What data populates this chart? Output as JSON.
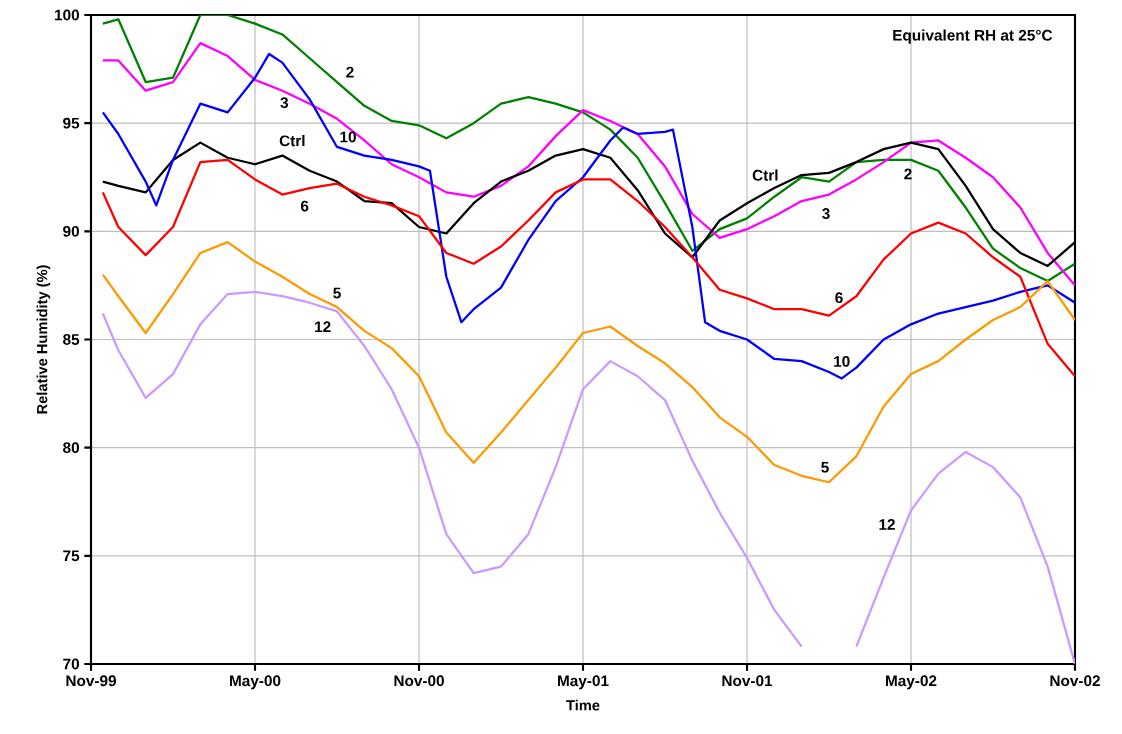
{
  "chart_data": {
    "type": "line",
    "xlabel": "Time",
    "ylabel": "Relative Humidity (%)",
    "annotations": [
      "Equivalent RH at 25°C"
    ],
    "x": [
      "1999-11-14",
      "1999-12-01",
      "2000-01-01",
      "2000-02-01",
      "2000-03-01",
      "2000-04-01",
      "2000-05-01",
      "2000-06-01",
      "2000-07-01",
      "2000-08-01",
      "2000-09-01",
      "2000-10-01",
      "2000-11-01",
      "2000-12-01",
      "2001-01-01",
      "2001-02-01",
      "2001-03-01",
      "2001-04-01",
      "2001-05-01",
      "2001-06-01",
      "2001-07-01",
      "2001-08-01",
      "2001-09-01",
      "2001-10-01",
      "2001-11-01",
      "2001-12-01",
      "2002-01-01",
      "2002-02-01",
      "2002-03-01",
      "2002-04-01",
      "2002-05-01",
      "2002-06-01",
      "2002-07-01",
      "2002-08-01",
      "2002-09-01",
      "2002-10-01",
      "2002-11-01"
    ],
    "series": [
      {
        "name": "2",
        "color": "#008000",
        "values": [
          99.6,
          99.8,
          96.9,
          97.1,
          100,
          100,
          99.6,
          99.1,
          98.0,
          96.9,
          95.8,
          95.1,
          94.9,
          94.3,
          95.0,
          95.9,
          96.2,
          95.9,
          95.5,
          94.7,
          93.4,
          91.3,
          89.1,
          90.1,
          90.6,
          91.6,
          92.5,
          92.3,
          93.2,
          93.3,
          93.3,
          92.8,
          91.1,
          89.2,
          88.3,
          87.7,
          88.5
        ]
      },
      {
        "name": "3",
        "color": "#ff00ff",
        "values": [
          97.9,
          97.9,
          96.5,
          96.9,
          98.7,
          98.1,
          97.0,
          96.5,
          95.9,
          95.2,
          94.2,
          93.1,
          92.5,
          91.8,
          91.6,
          92.1,
          93.0,
          94.4,
          95.6,
          95.1,
          94.5,
          93.0,
          90.8,
          89.7,
          90.1,
          90.7,
          91.4,
          91.7,
          92.4,
          93.2,
          94.1,
          94.2,
          93.4,
          92.5,
          91.1,
          89.0,
          87.5
        ]
      },
      {
        "name": "Ctrl",
        "color": "#000000",
        "values": [
          92.3,
          92.1,
          91.8,
          93.3,
          94.1,
          93.4,
          93.1,
          93.5,
          92.8,
          92.3,
          91.4,
          91.3,
          90.2,
          89.9,
          91.3,
          92.3,
          92.8,
          93.5,
          93.8,
          93.4,
          91.9,
          89.9,
          88.8,
          90.5,
          91.3,
          92.0,
          92.6,
          92.7,
          93.2,
          93.8,
          94.1,
          93.8,
          92.1,
          90.1,
          89.0,
          88.4,
          89.5
        ]
      },
      {
        "name": "10",
        "color": "#0000ff",
        "x": [
          "1999-11-14",
          "1999-12-01",
          "2000-01-01",
          "2000-01-13",
          "2000-02-01",
          "2000-03-01",
          "2000-04-01",
          "2000-05-01",
          "2000-05-17",
          "2000-06-01",
          "2000-07-01",
          "2000-08-01",
          "2000-09-01",
          "2000-10-01",
          "2000-11-01",
          "2000-11-13",
          "2000-12-01",
          "2000-12-18",
          "2001-01-01",
          "2001-02-01",
          "2001-03-01",
          "2001-04-01",
          "2001-05-01",
          "2001-06-01",
          "2001-06-15",
          "2001-07-01",
          "2001-08-01",
          "2001-08-10",
          "2001-09-01",
          "2001-09-15",
          "2001-10-01",
          "2001-11-01",
          "2001-12-01",
          "2002-01-01",
          "2002-02-01",
          "2002-02-14",
          "2002-03-01",
          "2002-04-01",
          "2002-05-01",
          "2002-06-01",
          "2002-07-01",
          "2002-08-01",
          "2002-09-01",
          "2002-10-01",
          "2002-11-01"
        ],
        "values": [
          95.5,
          94.5,
          92.3,
          91.2,
          93.3,
          95.9,
          95.5,
          97.1,
          98.2,
          97.8,
          96.1,
          93.9,
          93.5,
          93.3,
          93.0,
          92.8,
          87.9,
          85.8,
          86.4,
          87.4,
          89.6,
          91.4,
          92.5,
          94.2,
          94.8,
          94.5,
          94.6,
          94.7,
          90.2,
          85.8,
          85.4,
          85.0,
          84.1,
          84.0,
          83.5,
          83.2,
          83.7,
          85.0,
          85.7,
          86.2,
          86.5,
          86.8,
          87.2,
          87.5,
          86.7
        ]
      },
      {
        "name": "6",
        "color": "#ff0000",
        "values": [
          91.8,
          90.2,
          88.9,
          90.2,
          93.2,
          93.3,
          92.4,
          91.7,
          92.0,
          92.2,
          91.6,
          91.2,
          90.7,
          89.0,
          88.5,
          89.3,
          90.5,
          91.8,
          92.4,
          92.4,
          91.4,
          90.2,
          88.8,
          87.3,
          86.9,
          86.4,
          86.4,
          86.1,
          87.0,
          88.7,
          89.9,
          90.4,
          89.9,
          88.8,
          87.9,
          84.8,
          83.3
        ]
      },
      {
        "name": "5",
        "color": "#ff9900",
        "values": [
          88.0,
          87.0,
          85.3,
          87.1,
          89.0,
          89.5,
          88.6,
          87.9,
          87.1,
          86.5,
          85.4,
          84.6,
          83.3,
          80.7,
          79.3,
          80.7,
          82.2,
          83.7,
          85.3,
          85.6,
          84.7,
          83.9,
          82.8,
          81.4,
          80.5,
          79.2,
          78.7,
          78.4,
          79.6,
          81.9,
          83.4,
          84.0,
          85.0,
          85.9,
          86.5,
          87.7,
          85.9
        ]
      },
      {
        "name": "12",
        "color": "#cc99ff",
        "values": [
          86.2,
          84.5,
          82.3,
          83.4,
          85.7,
          87.1,
          87.2,
          87.0,
          86.7,
          86.3,
          84.7,
          82.7,
          80.0,
          76.0,
          74.2,
          74.5,
          76.0,
          79.1,
          82.7,
          84.0,
          83.3,
          82.2,
          79.4,
          77.0,
          74.9,
          72.5,
          70.8,
          null,
          70.8,
          74.0,
          77.1,
          78.8,
          79.8,
          79.1,
          77.7,
          74.5,
          70.0
        ]
      }
    ],
    "xlim": [
      "1999-11-01",
      "2002-11-01"
    ],
    "ylim": [
      70,
      100
    ],
    "xticks": [
      {
        "value": "1999-11-01",
        "label": "Nov-99"
      },
      {
        "value": "2000-05-01",
        "label": "May-00"
      },
      {
        "value": "2000-11-01",
        "label": "Nov-00"
      },
      {
        "value": "2001-05-01",
        "label": "May-01"
      },
      {
        "value": "2001-11-01",
        "label": "Nov-01"
      },
      {
        "value": "2002-05-01",
        "label": "May-02"
      },
      {
        "value": "2002-11-01",
        "label": "Nov-02"
      }
    ],
    "yticks": [
      70,
      75,
      80,
      85,
      90,
      95,
      100
    ],
    "grid": true
  }
}
